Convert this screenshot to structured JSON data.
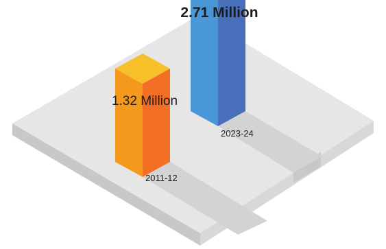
{
  "chart_data": {
    "type": "bar",
    "style": "isometric 3D columns on a platform",
    "categories": [
      "2011-12",
      "2023-24"
    ],
    "values": [
      1.32,
      2.71
    ],
    "unit": "Million",
    "data_labels": [
      "1.32 Million",
      "2.71 Million"
    ],
    "title": "",
    "xlabel": "",
    "ylabel": "",
    "grid": false,
    "legend": "none",
    "colors": {
      "bar_2011_top": "#f7c02a",
      "bar_2011_left": "#f5991d",
      "bar_2011_right": "#f26f25",
      "bar_2023_top": "#8cd0f2",
      "bar_2023_left": "#4a97d8",
      "bar_2023_right": "#4a6fba",
      "platform_top": "#e6e6e6",
      "platform_left": "#c8c8c8",
      "platform_right": "#d8d8d8",
      "shadow": "#d3d3d3"
    }
  }
}
